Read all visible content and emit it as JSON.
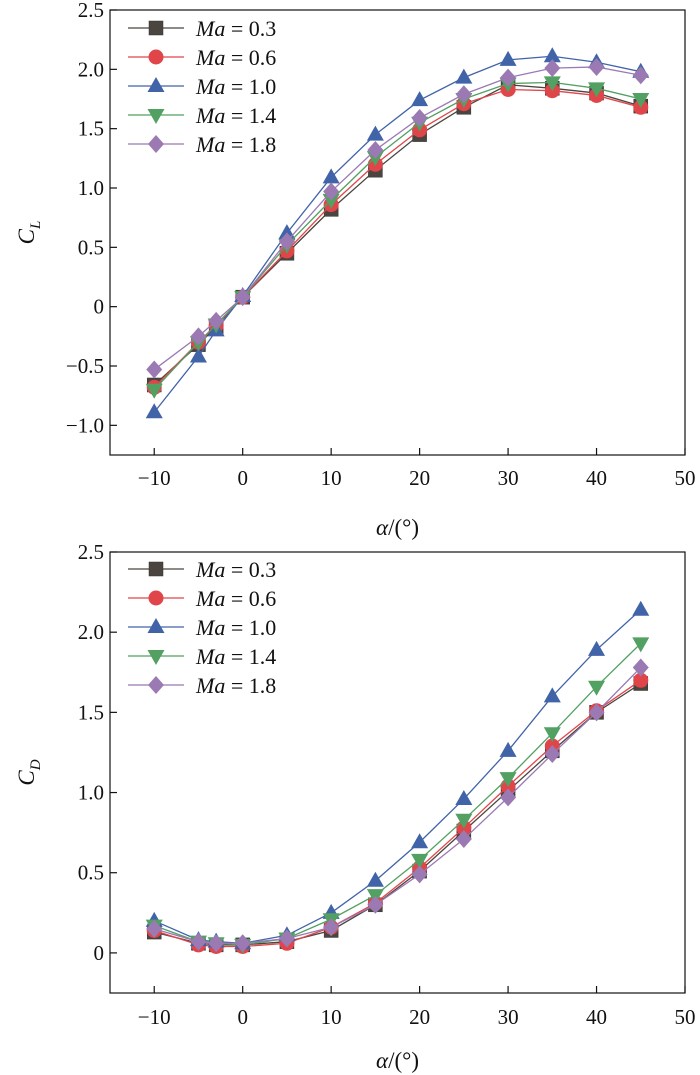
{
  "chart_data": [
    {
      "type": "line",
      "ylabel": "C",
      "ylabel_sub": "L",
      "xlabel_symbol": "α",
      "xlabel_rest": "/(°)",
      "xlim": [
        -15,
        50
      ],
      "ylim": [
        -1.25,
        2.5
      ],
      "xticks": [
        "−10",
        "0",
        "10",
        "20",
        "30",
        "40",
        "50"
      ],
      "yticks": [
        "−1.0",
        "−0.5",
        "0",
        "0.5",
        "1.0",
        "1.5",
        "2.0",
        "2.5"
      ],
      "x": [
        -10,
        -5,
        -3,
        0,
        5,
        10,
        15,
        20,
        25,
        30,
        35,
        40,
        45
      ],
      "legend_position": "top-left",
      "series": [
        {
          "name": "Ma = 0.3",
          "legend_var": "Ma",
          "legend_value": "= 0.3",
          "color": "#4b4540",
          "marker": "square",
          "values": [
            -0.66,
            -0.32,
            -0.17,
            0.08,
            0.45,
            0.82,
            1.15,
            1.45,
            1.68,
            1.87,
            1.84,
            1.8,
            1.69
          ]
        },
        {
          "name": "Ma = 0.6",
          "legend_var": "Ma",
          "legend_value": "= 0.6",
          "color": "#e0454a",
          "marker": "circle",
          "values": [
            -0.68,
            -0.3,
            -0.16,
            0.08,
            0.47,
            0.86,
            1.2,
            1.49,
            1.71,
            1.83,
            1.82,
            1.78,
            1.68
          ]
        },
        {
          "name": "Ma = 1.0",
          "legend_var": "Ma",
          "legend_value": "= 1.0",
          "color": "#4163a8",
          "marker": "triangle-up",
          "values": [
            -0.89,
            -0.42,
            -0.2,
            0.09,
            0.62,
            1.09,
            1.45,
            1.74,
            1.93,
            2.08,
            2.11,
            2.06,
            1.98
          ]
        },
        {
          "name": "Ma = 1.4",
          "legend_var": "Ma",
          "legend_value": "= 1.4",
          "color": "#52a062",
          "marker": "triangle-down",
          "values": [
            -0.7,
            -0.3,
            -0.15,
            0.08,
            0.52,
            0.9,
            1.26,
            1.55,
            1.75,
            1.88,
            1.89,
            1.84,
            1.75
          ]
        },
        {
          "name": "Ma = 1.8",
          "legend_var": "Ma",
          "legend_value": "= 1.8",
          "color": "#9b79b2",
          "marker": "diamond",
          "values": [
            -0.53,
            -0.25,
            -0.12,
            0.08,
            0.55,
            0.97,
            1.32,
            1.59,
            1.79,
            1.93,
            2.01,
            2.02,
            1.95
          ]
        }
      ]
    },
    {
      "type": "line",
      "ylabel": "C",
      "ylabel_sub": "D",
      "xlabel_symbol": "α",
      "xlabel_rest": "/(°)",
      "xlim": [
        -15,
        50
      ],
      "ylim": [
        -0.25,
        2.5
      ],
      "xticks": [
        "−10",
        "0",
        "10",
        "20",
        "30",
        "40",
        "50"
      ],
      "yticks": [
        "0",
        "0.5",
        "1.0",
        "1.5",
        "2.0",
        "2.5"
      ],
      "x": [
        -10,
        -5,
        -3,
        0,
        5,
        10,
        15,
        20,
        25,
        30,
        35,
        40,
        45
      ],
      "legend_position": "top-left",
      "series": [
        {
          "name": "Ma = 0.3",
          "legend_var": "Ma",
          "legend_value": "= 0.3",
          "color": "#4b4540",
          "marker": "square",
          "values": [
            0.13,
            0.06,
            0.05,
            0.05,
            0.07,
            0.14,
            0.3,
            0.51,
            0.76,
            1.01,
            1.26,
            1.5,
            1.68
          ]
        },
        {
          "name": "Ma = 0.6",
          "legend_var": "Ma",
          "legend_value": "= 0.6",
          "color": "#e0454a",
          "marker": "circle",
          "values": [
            0.14,
            0.05,
            0.04,
            0.04,
            0.06,
            0.16,
            0.31,
            0.53,
            0.78,
            1.04,
            1.29,
            1.51,
            1.7
          ]
        },
        {
          "name": "Ma = 1.0",
          "legend_var": "Ma",
          "legend_value": "= 1.0",
          "color": "#4163a8",
          "marker": "triangle-up",
          "values": [
            0.2,
            0.08,
            0.07,
            0.06,
            0.11,
            0.25,
            0.45,
            0.69,
            0.96,
            1.26,
            1.6,
            1.89,
            2.14
          ]
        },
        {
          "name": "Ma = 1.4",
          "legend_var": "Ma",
          "legend_value": "= 1.4",
          "color": "#52a062",
          "marker": "triangle-down",
          "values": [
            0.17,
            0.07,
            0.06,
            0.05,
            0.09,
            0.21,
            0.36,
            0.58,
            0.83,
            1.09,
            1.37,
            1.66,
            1.93
          ]
        },
        {
          "name": "Ma = 1.8",
          "legend_var": "Ma",
          "legend_value": "= 1.8",
          "color": "#9b79b2",
          "marker": "diamond",
          "values": [
            0.15,
            0.07,
            0.06,
            0.06,
            0.09,
            0.16,
            0.3,
            0.49,
            0.71,
            0.97,
            1.24,
            1.5,
            1.78
          ]
        }
      ]
    }
  ]
}
